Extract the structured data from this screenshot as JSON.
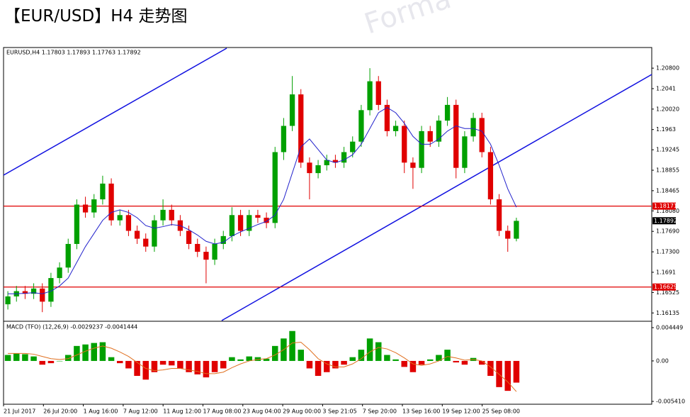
{
  "title": "【EUR/USD】H4 走势图",
  "watermark": "Forma",
  "chart_data": [
    {
      "type": "candlestick",
      "symbol_info": "EURUSD,H4  1.17803 1.17893 1.17763 1.17892",
      "up_color": "#00a000",
      "down_color": "#e00000",
      "ma_color": "#2222cc",
      "open": [
        1.163,
        1.1645,
        1.1655,
        1.165,
        1.166,
        1.1635,
        1.168,
        1.17,
        1.1745,
        1.182,
        1.1805,
        1.183,
        1.186,
        1.179,
        1.18,
        1.177,
        1.1755,
        1.174,
        1.179,
        1.181,
        1.179,
        1.177,
        1.1745,
        1.173,
        1.1715,
        1.1745,
        1.176,
        1.18,
        1.177,
        1.18,
        1.1795,
        1.1785,
        1.192,
        1.197,
        1.203,
        1.19,
        1.188,
        1.1895,
        1.1905,
        1.19,
        1.192,
        1.194,
        1.2,
        1.2055,
        1.201,
        1.196,
        1.197,
        1.19,
        1.189,
        1.196,
        1.194,
        1.198,
        1.201,
        1.189,
        1.195,
        1.1985,
        1.192,
        1.183,
        1.177,
        1.1755
      ],
      "high": [
        1.1655,
        1.1665,
        1.1665,
        1.167,
        1.167,
        1.169,
        1.171,
        1.1755,
        1.183,
        1.1835,
        1.184,
        1.1875,
        1.187,
        1.181,
        1.181,
        1.178,
        1.1765,
        1.18,
        1.183,
        1.182,
        1.18,
        1.178,
        1.1755,
        1.174,
        1.1755,
        1.177,
        1.1815,
        1.181,
        1.181,
        1.181,
        1.1805,
        1.193,
        1.1985,
        1.2065,
        1.204,
        1.191,
        1.1905,
        1.1915,
        1.1915,
        1.193,
        1.195,
        1.201,
        1.208,
        1.2065,
        1.202,
        1.198,
        1.198,
        1.191,
        1.197,
        1.197,
        1.199,
        1.2025,
        1.202,
        1.196,
        1.1995,
        1.1995,
        1.193,
        1.184,
        1.178,
        1.1795
      ],
      "low": [
        1.162,
        1.1635,
        1.164,
        1.164,
        1.1615,
        1.1625,
        1.167,
        1.169,
        1.1735,
        1.1795,
        1.1795,
        1.182,
        1.178,
        1.178,
        1.176,
        1.1745,
        1.173,
        1.173,
        1.178,
        1.178,
        1.176,
        1.1735,
        1.172,
        1.167,
        1.1705,
        1.1735,
        1.175,
        1.176,
        1.176,
        1.1785,
        1.1775,
        1.1775,
        1.1905,
        1.196,
        1.189,
        1.183,
        1.187,
        1.1885,
        1.189,
        1.189,
        1.191,
        1.193,
        1.199,
        1.2,
        1.195,
        1.195,
        1.188,
        1.185,
        1.188,
        1.193,
        1.193,
        1.197,
        1.187,
        1.188,
        1.194,
        1.191,
        1.182,
        1.176,
        1.173,
        1.175
      ],
      "close": [
        1.1645,
        1.1655,
        1.165,
        1.166,
        1.1635,
        1.168,
        1.17,
        1.1745,
        1.182,
        1.1805,
        1.183,
        1.186,
        1.179,
        1.18,
        1.177,
        1.1755,
        1.174,
        1.179,
        1.181,
        1.179,
        1.177,
        1.1745,
        1.173,
        1.1715,
        1.1745,
        1.176,
        1.18,
        1.177,
        1.18,
        1.1795,
        1.1785,
        1.192,
        1.197,
        1.203,
        1.19,
        1.188,
        1.1895,
        1.1905,
        1.19,
        1.192,
        1.194,
        1.2,
        1.2055,
        1.201,
        1.196,
        1.197,
        1.19,
        1.189,
        1.196,
        1.194,
        1.198,
        1.201,
        1.189,
        1.195,
        1.1985,
        1.192,
        1.183,
        1.177,
        1.1755,
        1.1789
      ],
      "ma": [
        1.165,
        1.165,
        1.1651,
        1.1652,
        1.165,
        1.1655,
        1.1665,
        1.168,
        1.171,
        1.174,
        1.1765,
        1.179,
        1.1805,
        1.181,
        1.1805,
        1.1795,
        1.178,
        1.1775,
        1.1778,
        1.1782,
        1.178,
        1.1772,
        1.1762,
        1.175,
        1.1745,
        1.1748,
        1.176,
        1.1768,
        1.1775,
        1.1782,
        1.1788,
        1.18,
        1.183,
        1.188,
        1.193,
        1.1945,
        1.1925,
        1.1905,
        1.19,
        1.1905,
        1.1915,
        1.1935,
        1.1965,
        1.1995,
        1.2005,
        1.1995,
        1.1975,
        1.195,
        1.1935,
        1.1935,
        1.1945,
        1.196,
        1.197,
        1.1965,
        1.1965,
        1.196,
        1.1935,
        1.1895,
        1.185,
        1.1815
      ],
      "ylim": [
        1.1599,
        1.2118
      ],
      "yticks": [
        {
          "value": 1.208,
          "label": "1.20800"
        },
        1.2041,
        {
          "value": 1.2002,
          "label": "1.20020"
        },
        1.1963,
        1.19245,
        1.18855,
        1.18465,
        {
          "value": 1.1808,
          "label": "1.18080"
        },
        {
          "value": 1.1769,
          "label": "1.17690"
        },
        {
          "value": 1.173,
          "label": "1.17300"
        },
        1.1691,
        1.16525,
        1.16135
      ],
      "levels": [
        {
          "value": 1.18171,
          "color": "#e00000"
        },
        {
          "value": 1.16629,
          "color": "#e00000"
        }
      ],
      "current_price": 1.17892,
      "x_labels": [
        "21 Jul 2017",
        "26 Jul 20:00",
        "1 Aug 16:00",
        "7 Aug 12:00",
        "11 Aug 12:00",
        "17 Aug 08:00",
        "23 Aug 04:00",
        "29 Aug 00:00",
        "3 Sep 21:05",
        "7 Sep 20:00",
        "13 Sep 16:00",
        "19 Sep 12:00",
        "25 Sep 08:00"
      ]
    },
    {
      "type": "macd",
      "title": "MACD (TFO) (12,26,9) -0.0029237 -0.0041444",
      "up_color": "#00a000",
      "down_color": "#e00000",
      "signal_color": "#e07020",
      "values": [
        0.0008,
        0.001,
        0.0009,
        0.0006,
        -0.0005,
        -0.0003,
        0.0,
        0.0008,
        0.002,
        0.0022,
        0.0024,
        0.0025,
        0.0005,
        -0.0003,
        -0.001,
        -0.002,
        -0.0025,
        -0.0015,
        -0.0005,
        -0.0006,
        -0.001,
        -0.0015,
        -0.0018,
        -0.0022,
        -0.0015,
        -0.001,
        0.0005,
        0.0002,
        0.0006,
        0.0005,
        0.0003,
        0.002,
        0.003,
        0.004,
        0.0015,
        -0.001,
        -0.002,
        -0.0015,
        -0.001,
        -0.0005,
        0.0005,
        0.0015,
        0.003,
        0.0025,
        0.0008,
        0.0002,
        -0.0008,
        -0.0015,
        -0.0005,
        0.0002,
        0.0008,
        0.0015,
        -0.0002,
        -0.0005,
        0.0004,
        -0.0005,
        -0.002,
        -0.0035,
        -0.004,
        -0.0029
      ],
      "signal": [
        0.001,
        0.001,
        0.001,
        0.0009,
        0.0006,
        0.0003,
        0.0002,
        0.0003,
        0.0008,
        0.0013,
        0.0017,
        0.002,
        0.0017,
        0.0012,
        0.0006,
        -0.0002,
        -0.001,
        -0.0013,
        -0.0012,
        -0.001,
        -0.001,
        -0.0012,
        -0.0014,
        -0.0017,
        -0.0017,
        -0.0015,
        -0.0009,
        -0.0004,
        0.0,
        0.0002,
        0.0003,
        0.0008,
        0.0015,
        0.0024,
        0.0025,
        0.0015,
        0.0003,
        -0.0004,
        -0.0008,
        -0.0008,
        -0.0004,
        0.0003,
        0.0012,
        0.0018,
        0.0016,
        0.0011,
        0.0004,
        -0.0004,
        -0.0006,
        -0.0004,
        0.0,
        0.0006,
        0.0004,
        0.0001,
        0.0002,
        0.0,
        -0.0008,
        -0.0018,
        -0.0028,
        -0.0041
      ],
      "ylim": [
        -0.00541,
        0.004449
      ],
      "yticks": [
        0.004449,
        {
          "value": 0,
          "label": "0.00"
        },
        {
          "value": -0.00541,
          "label": "-0.005410"
        }
      ]
    }
  ]
}
